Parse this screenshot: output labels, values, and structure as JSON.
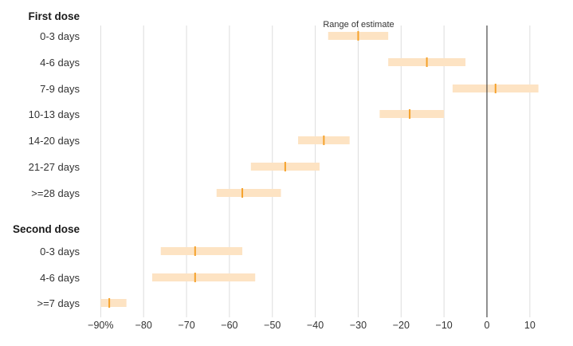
{
  "chart_data": {
    "type": "range-dot",
    "annotation": "Range of estimate",
    "x_ticks": [
      -90,
      -80,
      -70,
      -60,
      -50,
      -40,
      -30,
      -20,
      -10,
      0,
      10
    ],
    "x_tick_labels": [
      "−90%",
      "−80",
      "−70",
      "−60",
      "−50",
      "−40",
      "−30",
      "−20",
      "−10",
      "0",
      "10"
    ],
    "xlim": [
      -92,
      13
    ],
    "reference_line": 0,
    "colors": {
      "range": "#fde3c3",
      "estimate": "#f5a22c",
      "grid": "#dddddd",
      "reference": "#222222"
    },
    "groups": [
      {
        "label": "First dose",
        "rows": [
          {
            "label": "0-3 days",
            "estimate": -30,
            "low": -37,
            "high": -23
          },
          {
            "label": "4-6 days",
            "estimate": -14,
            "low": -23,
            "high": -5
          },
          {
            "label": "7-9 days",
            "estimate": 2,
            "low": -8,
            "high": 12
          },
          {
            "label": "10-13 days",
            "estimate": -18,
            "low": -25,
            "high": -10
          },
          {
            "label": "14-20 days",
            "estimate": -38,
            "low": -44,
            "high": -32
          },
          {
            "label": "21-27 days",
            "estimate": -47,
            "low": -55,
            "high": -39
          },
          {
            "label": ">=28 days",
            "estimate": -57,
            "low": -63,
            "high": -48
          }
        ]
      },
      {
        "label": "Second dose",
        "rows": [
          {
            "label": "0-3 days",
            "estimate": -68,
            "low": -76,
            "high": -57
          },
          {
            "label": "4-6 days",
            "estimate": -68,
            "low": -78,
            "high": -54
          },
          {
            "label": ">=7 days",
            "estimate": -88,
            "low": -90,
            "high": -84
          }
        ]
      }
    ]
  }
}
